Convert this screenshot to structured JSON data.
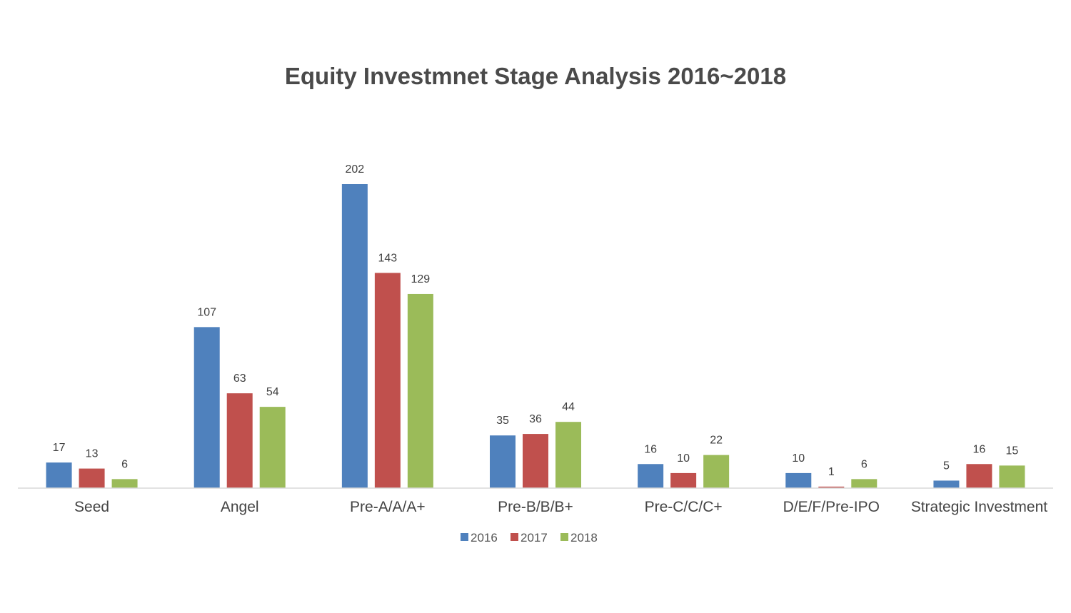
{
  "chart_data": {
    "type": "bar",
    "title": "Equity Investmnet Stage Analysis 2016~2018",
    "xlabel": "",
    "ylabel": "",
    "categories": [
      "Seed",
      "Angel",
      "Pre-A/A/A+",
      "Pre-B/B/B+",
      "Pre-C/C/C+",
      "D/E/F/Pre-IPO",
      "Strategic Investment"
    ],
    "series": [
      {
        "name": "2016",
        "color": "#4f81bd",
        "values": [
          17,
          107,
          202,
          35,
          16,
          10,
          5
        ]
      },
      {
        "name": "2017",
        "color": "#c0504d",
        "values": [
          13,
          63,
          143,
          36,
          10,
          1,
          16
        ]
      },
      {
        "name": "2018",
        "color": "#9bbb59",
        "values": [
          6,
          54,
          129,
          44,
          22,
          6,
          15
        ]
      }
    ],
    "ylim": [
      0,
      202
    ],
    "grid": false,
    "legend_position": "bottom",
    "data_labels": true
  }
}
